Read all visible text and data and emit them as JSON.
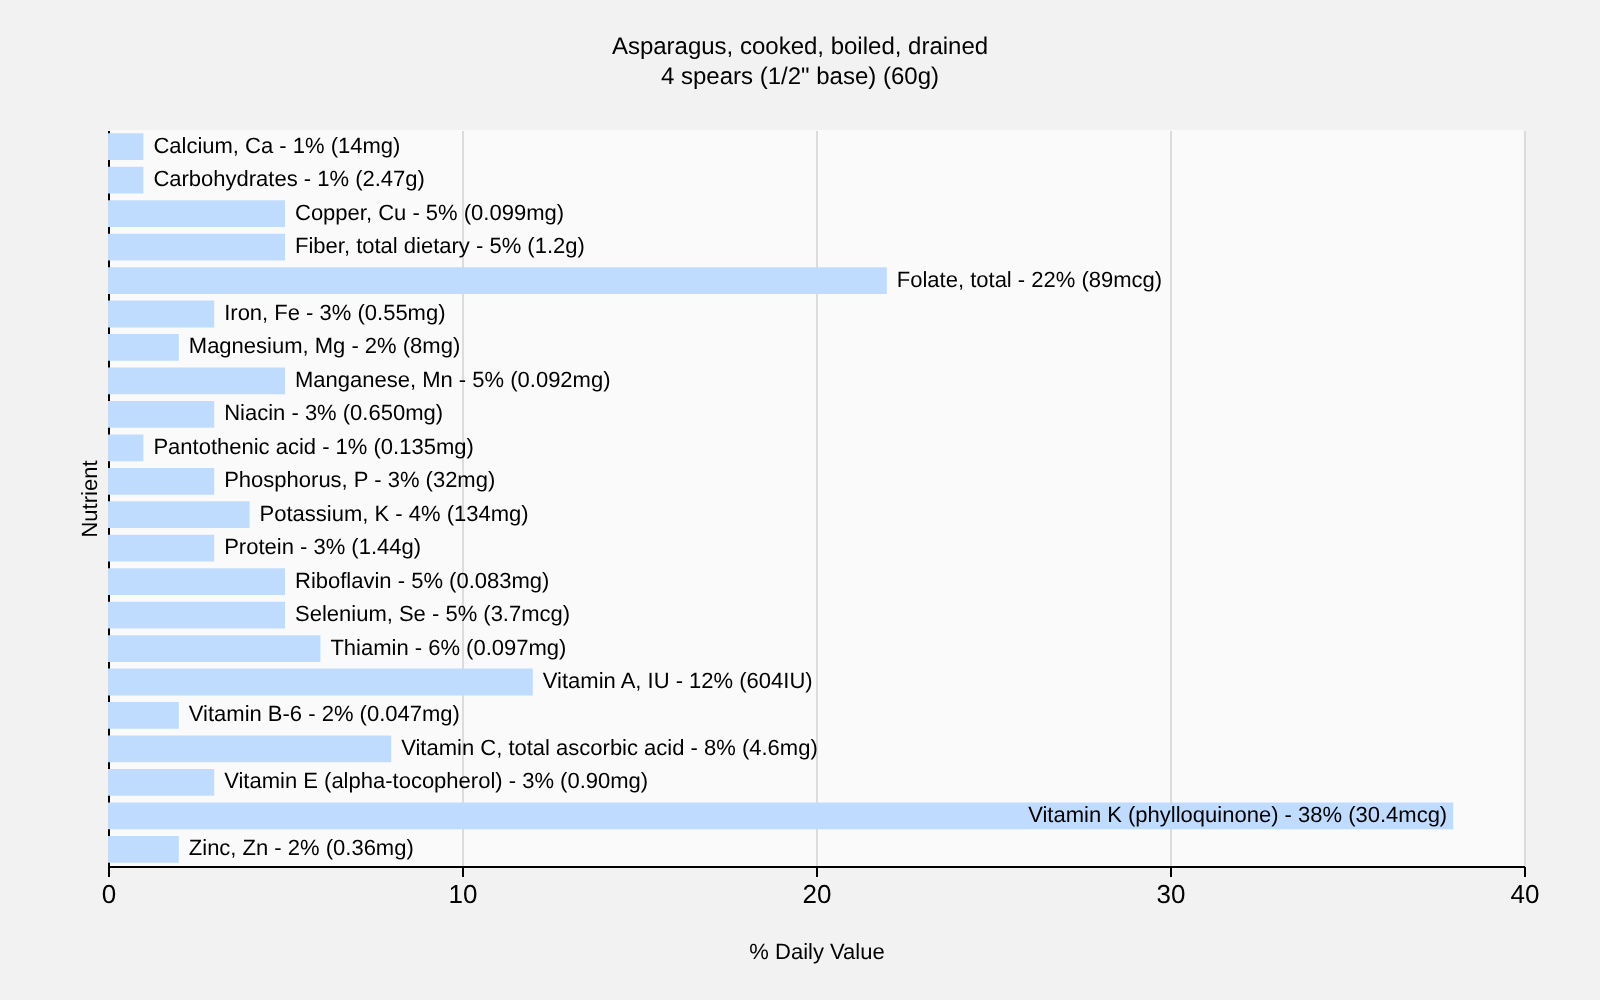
{
  "chart_data": {
    "type": "bar",
    "orientation": "horizontal",
    "title": "Asparagus, cooked, boiled, drained",
    "subtitle": "4 spears (1/2\" base) (60g)",
    "xlabel": "% Daily Value",
    "ylabel": "Nutrient",
    "categories": [
      "Calcium, Ca - 1% (14mg)",
      "Carbohydrates - 1% (2.47g)",
      "Copper, Cu - 5% (0.099mg)",
      "Fiber, total dietary - 5% (1.2g)",
      "Folate, total - 22% (89mcg)",
      "Iron, Fe - 3% (0.55mg)",
      "Magnesium, Mg - 2% (8mg)",
      "Manganese, Mn - 5% (0.092mg)",
      "Niacin - 3% (0.650mg)",
      "Pantothenic acid - 1% (0.135mg)",
      "Phosphorus, P - 3% (32mg)",
      "Potassium, K - 4% (134mg)",
      "Protein - 3% (1.44g)",
      "Riboflavin - 5% (0.083mg)",
      "Selenium, Se - 5% (3.7mcg)",
      "Thiamin - 6% (0.097mg)",
      "Vitamin A, IU - 12% (604IU)",
      "Vitamin B-6 - 2% (0.047mg)",
      "Vitamin C, total ascorbic acid - 8% (4.6mg)",
      "Vitamin E (alpha-tocopherol) - 3% (0.90mg)",
      "Vitamin K (phylloquinone) - 38% (30.4mcg)",
      "Zinc, Zn - 2% (0.36mg)"
    ],
    "values": [
      1,
      1,
      5,
      5,
      22,
      3,
      2,
      5,
      3,
      1,
      3,
      4,
      3,
      5,
      5,
      6,
      12,
      2,
      8,
      3,
      38,
      2
    ],
    "color": "#bfdbfd",
    "xlim": [
      0,
      40
    ],
    "xticks": [
      0,
      10,
      20,
      30,
      40
    ],
    "grid": "x"
  }
}
